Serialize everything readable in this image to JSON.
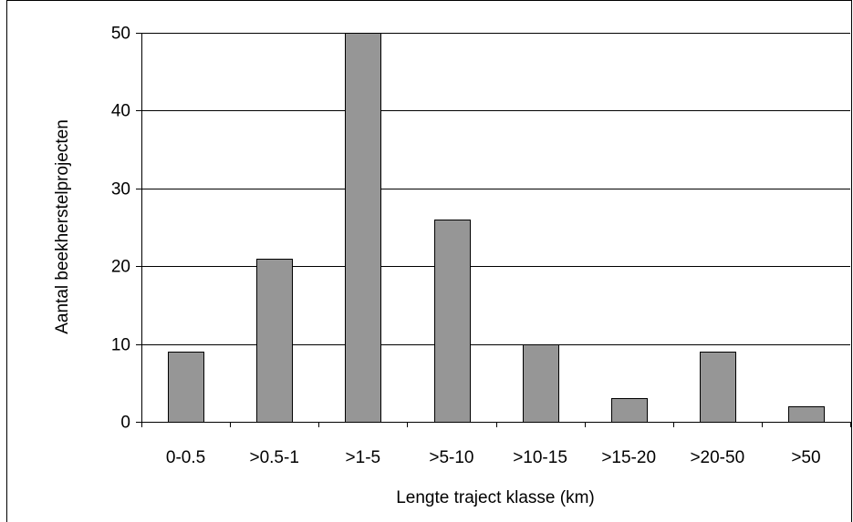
{
  "chart_data": {
    "type": "bar",
    "title": "",
    "xlabel": "Lengte traject klasse (km)",
    "ylabel": "Aantal beekherstelprojecten",
    "categories": [
      "0-0.5",
      ">0.5-1",
      ">1-5",
      ">5-10",
      ">10-15",
      ">15-20",
      ">20-50",
      ">50"
    ],
    "values": [
      9,
      21,
      50,
      26,
      10,
      3,
      9,
      2
    ],
    "ylim": [
      0,
      50
    ],
    "yticks": [
      0,
      10,
      20,
      30,
      40,
      50
    ],
    "grid": true,
    "legend": "none",
    "colors": {
      "bar": "#969696",
      "bar_edge": "#000000",
      "gridline": "#000000"
    }
  }
}
